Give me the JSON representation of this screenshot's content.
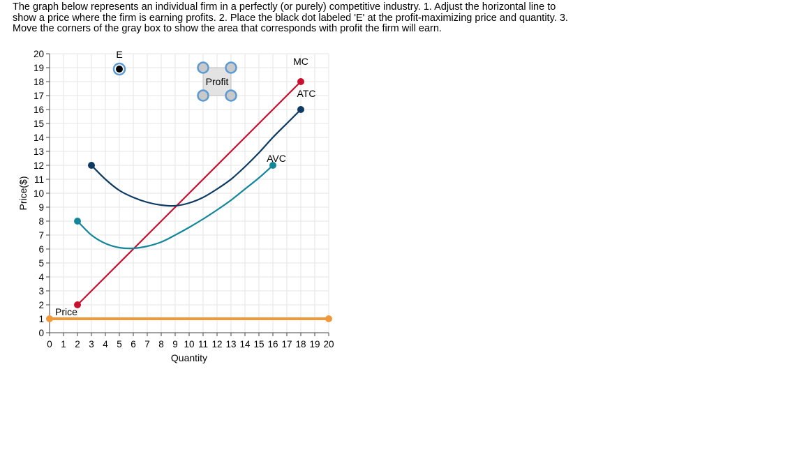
{
  "instructions": "The graph below represents an individual firm in a perfectly (or purely) competitive industry. 1. Adjust the horizontal line to show a price where the firm is earning profits. 2. Place the black dot labeled 'E' at the profit-maximizing price and quantity. 3. Move the corners of the gray box to show the area that corresponds with profit the firm will earn.",
  "chart_data": {
    "type": "line",
    "xlabel": "Quantity",
    "ylabel": "Price($)",
    "xlim": [
      0,
      20
    ],
    "ylim": [
      0,
      20
    ],
    "x_ticks": [
      0,
      1,
      2,
      3,
      4,
      5,
      6,
      7,
      8,
      9,
      10,
      11,
      12,
      13,
      14,
      15,
      16,
      17,
      18,
      19,
      20
    ],
    "y_ticks": [
      0,
      1,
      2,
      3,
      4,
      5,
      6,
      7,
      8,
      9,
      10,
      11,
      12,
      13,
      14,
      15,
      16,
      17,
      18,
      19,
      20
    ],
    "grid": true,
    "series": [
      {
        "name": "MC",
        "color": "#c8102e",
        "x": [
          2,
          18
        ],
        "y": [
          2,
          18
        ],
        "label_at": [
          18,
          19.2
        ]
      },
      {
        "name": "ATC",
        "color": "#0d3a61",
        "x": [
          3,
          4,
          5,
          6,
          7,
          8,
          9,
          10,
          11,
          12,
          13,
          14,
          15,
          16,
          17,
          18
        ],
        "y": [
          12,
          11,
          10.2,
          9.7,
          9.35,
          9.15,
          9.1,
          9.3,
          9.7,
          10.3,
          11,
          11.9,
          12.9,
          14,
          15,
          16
        ],
        "label_at": [
          18.4,
          16.9
        ]
      },
      {
        "name": "AVC",
        "color": "#13879a",
        "x": [
          2,
          3,
          4,
          5,
          6,
          7,
          8,
          9,
          10,
          11,
          12,
          13,
          14,
          15,
          16
        ],
        "y": [
          8,
          7,
          6.4,
          6.1,
          6.05,
          6.2,
          6.5,
          7,
          7.55,
          8.15,
          8.8,
          9.5,
          10.3,
          11.1,
          12
        ],
        "label_at": [
          16.25,
          12.25
        ]
      }
    ],
    "price_line": {
      "label": "Price",
      "value": 1,
      "x_range": [
        0,
        20
      ],
      "color": "#f0993a",
      "label_at": [
        1.2,
        1.25
      ]
    },
    "point_E": {
      "label": "E",
      "x": 5,
      "y": 18.9
    },
    "profit_box": {
      "label": "Profit",
      "x": [
        11,
        13
      ],
      "y": [
        17,
        19
      ]
    }
  }
}
